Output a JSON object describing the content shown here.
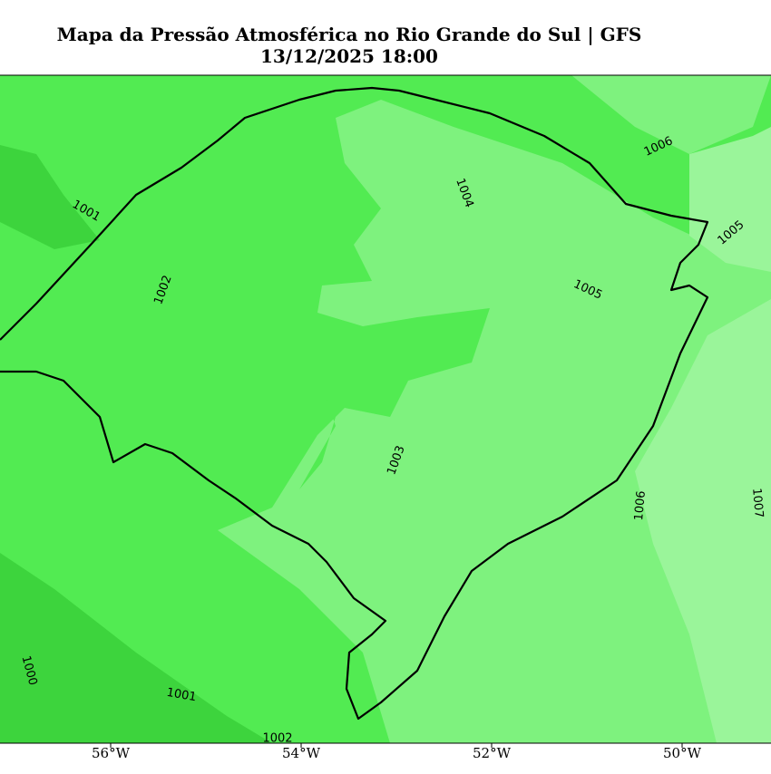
{
  "header": {
    "title": "Mapa da Pressão Atmosférica no Rio Grande do Sul | GFS",
    "date": "13/12/2025 18:00"
  },
  "map": {
    "x_ticks": [
      "56°W",
      "54°W",
      "52°W",
      "50°W"
    ],
    "contour_labels": [
      "1001",
      "1002",
      "1004",
      "1006",
      "1005",
      "1005",
      "1003",
      "1006",
      "1007",
      "1000",
      "1001",
      "1002"
    ]
  }
}
